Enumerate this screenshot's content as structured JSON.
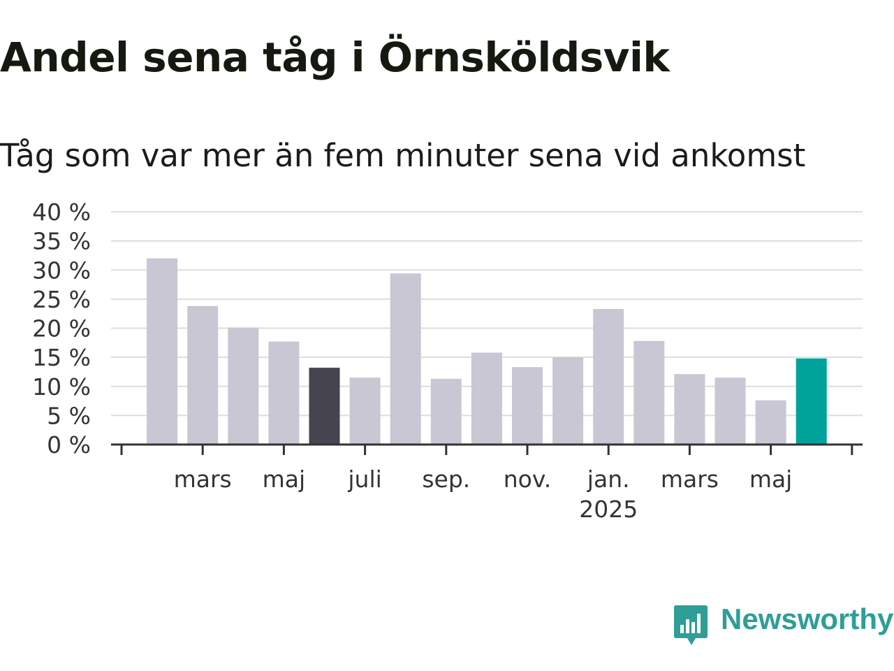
{
  "header": {
    "title": "Andel sena tåg i Örnsköldsvik",
    "subtitle": "Tåg som var mer än fem minuter sena vid ankomst"
  },
  "brand": {
    "name": "Newsworthy",
    "icon": "bar-chart-speech-bubble-icon",
    "color": "#2e9e97"
  },
  "colors": {
    "default_bar": "#c8c7d3",
    "highlight_dark": "#45444f",
    "highlight_latest": "#00a39a",
    "grid": "#dddddd",
    "axis": "#333333"
  },
  "chart_data": {
    "type": "bar",
    "title": "Andel sena tåg i Örnsköldsvik",
    "subtitle": "Tåg som var mer än fem minuter sena vid ankomst",
    "x": [
      "2024-01",
      "2024-02",
      "2024-03",
      "2024-04",
      "2024-05",
      "2024-06",
      "2024-07",
      "2024-08",
      "2024-09",
      "2024-10",
      "2024-11",
      "2024-12",
      "2025-01",
      "2025-02",
      "2025-03",
      "2025-04",
      "2025-05",
      "2025-06",
      "2025-07"
    ],
    "values": [
      null,
      32.0,
      23.8,
      20.1,
      17.7,
      13.2,
      11.5,
      29.4,
      11.3,
      15.8,
      13.3,
      15.0,
      23.3,
      17.8,
      12.1,
      11.5,
      7.6,
      14.8,
      null
    ],
    "bar_highlight": [
      "",
      "",
      "",
      "",
      "",
      "dark",
      "",
      "",
      "",
      "",
      "",
      "",
      "",
      "",
      "",
      "",
      "",
      "latest",
      ""
    ],
    "ylim": [
      0,
      40
    ],
    "y_ticks": [
      0,
      5,
      10,
      15,
      20,
      25,
      30,
      35,
      40
    ],
    "y_tick_labels": [
      "0 %",
      "5 %",
      "10 %",
      "15 %",
      "20 %",
      "25 %",
      "30 %",
      "35 %",
      "40 %"
    ],
    "x_ticks": [
      {
        "index": 3,
        "label": "mars"
      },
      {
        "index": 5,
        "label": "maj"
      },
      {
        "index": 7,
        "label": "juli"
      },
      {
        "index": 9,
        "label": "sep."
      },
      {
        "index": 11,
        "label": "nov."
      },
      {
        "index": 13,
        "label": "jan.",
        "sublabel": "2025"
      },
      {
        "index": 15,
        "label": "mars"
      },
      {
        "index": 17,
        "label": "maj"
      }
    ],
    "grid": true,
    "xlabel": "",
    "ylabel": ""
  }
}
